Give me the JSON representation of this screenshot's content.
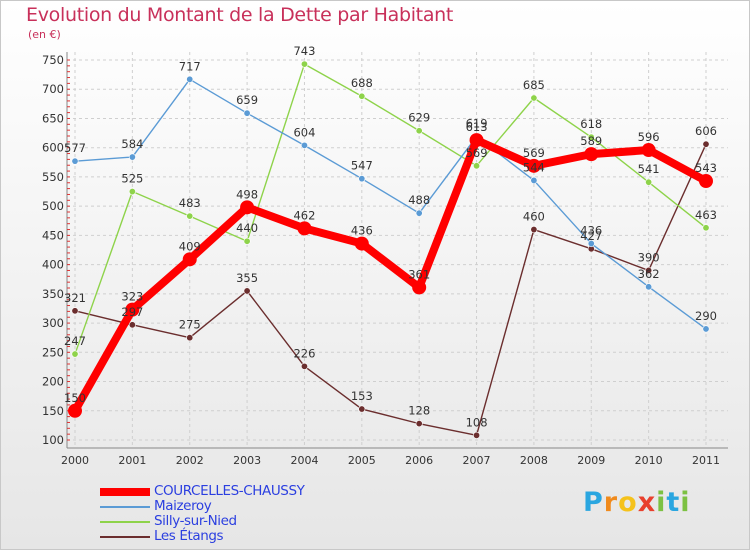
{
  "title": "Evolution du Montant de la Dette par Habitant",
  "unit_label": "(en €)",
  "chart_data": {
    "type": "line",
    "x": [
      "2000",
      "2001",
      "2002",
      "2003",
      "2004",
      "2005",
      "2006",
      "2007",
      "2008",
      "2009",
      "2010",
      "2011"
    ],
    "ylim": [
      100,
      750
    ],
    "yticks": [
      100,
      150,
      200,
      250,
      300,
      350,
      400,
      450,
      500,
      550,
      600,
      650,
      700,
      750
    ],
    "grid": true,
    "legend_position": "bottom-left",
    "series": [
      {
        "name": "COURCELLES-CHAUSSY",
        "color": "#ff0000",
        "values": [
          150,
          323,
          409,
          498,
          462,
          436,
          361,
          613,
          569,
          589,
          596,
          543
        ]
      },
      {
        "name": "Maizeroy",
        "color": "#5b9bd5",
        "values": [
          577,
          584,
          717,
          659,
          604,
          547,
          488,
          619,
          544,
          436,
          362,
          290
        ]
      },
      {
        "name": "Silly-sur-Nied",
        "color": "#8ed34a",
        "values": [
          247,
          525,
          483,
          440,
          743,
          688,
          629,
          569,
          685,
          618,
          541,
          463
        ]
      },
      {
        "name": "Les Étangs",
        "color": "#6b2e2e",
        "values": [
          321,
          297,
          275,
          355,
          226,
          153,
          128,
          108,
          460,
          427,
          390,
          606
        ]
      }
    ]
  },
  "logo": {
    "text": "Proxiti",
    "letters": [
      {
        "ch": "P",
        "color": "#2aa6e0"
      },
      {
        "ch": "r",
        "color": "#f08a1c"
      },
      {
        "ch": "o",
        "color": "#f5c21b"
      },
      {
        "ch": "x",
        "color": "#e8402d"
      },
      {
        "ch": "i",
        "color": "#7cc142"
      },
      {
        "ch": "t",
        "color": "#2aa6e0"
      },
      {
        "ch": "i",
        "color": "#7cc142"
      }
    ]
  }
}
